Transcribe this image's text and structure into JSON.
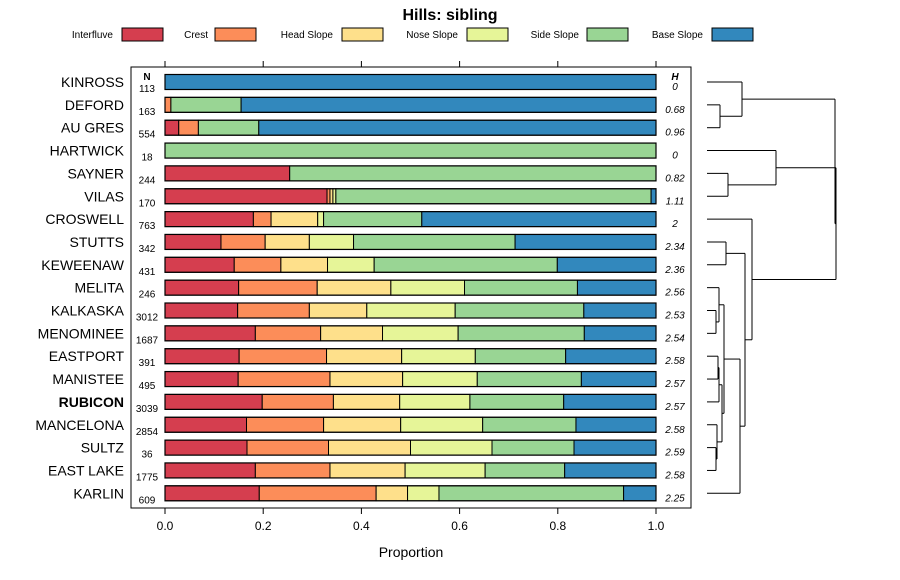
{
  "chart_data": {
    "type": "bar",
    "orientation": "horizontal",
    "stacked": true,
    "title": "Hills: sibling",
    "xlabel": "Proportion",
    "xlim": [
      0,
      1
    ],
    "xticks": [
      0,
      0.2,
      0.4,
      0.6,
      0.8,
      1
    ],
    "xtick_labels": [
      "0.0",
      "0.2",
      "0.4",
      "0.6",
      "0.8",
      "1.0"
    ],
    "n_header": "N",
    "h_header": "H",
    "highlight": "RUBICON",
    "series": [
      {
        "name": "Interfluve",
        "color": "#d53e4f"
      },
      {
        "name": "Crest",
        "color": "#fc8d59"
      },
      {
        "name": "Head Slope",
        "color": "#fee08b"
      },
      {
        "name": "Nose Slope",
        "color": "#e6f598"
      },
      {
        "name": "Side Slope",
        "color": "#99d594"
      },
      {
        "name": "Base Slope",
        "color": "#3288bd"
      }
    ],
    "rows": [
      {
        "name": "KINROSS",
        "n": "113",
        "h": "0",
        "values": [
          0,
          0,
          0,
          0,
          0,
          1
        ]
      },
      {
        "name": "DEFORD",
        "n": "163",
        "h": "0.68",
        "values": [
          0,
          0.012,
          0,
          0,
          0.143,
          0.845
        ]
      },
      {
        "name": "AU GRES",
        "n": "554",
        "h": "0.96",
        "values": [
          0.028,
          0.04,
          0,
          0,
          0.123,
          0.809
        ]
      },
      {
        "name": "HARTWICK",
        "n": "18",
        "h": "0",
        "values": [
          0,
          0,
          0,
          0,
          1,
          0
        ]
      },
      {
        "name": "SAYNER",
        "n": "244",
        "h": "0.82",
        "values": [
          0.254,
          0,
          0,
          0,
          0.746,
          0
        ]
      },
      {
        "name": "VILAS",
        "n": "170",
        "h": "1.11",
        "values": [
          0.33,
          0.006,
          0.006,
          0.006,
          0.642,
          0.01
        ]
      },
      {
        "name": "CROSWELL",
        "n": "763",
        "h": "2",
        "values": [
          0.18,
          0.036,
          0.095,
          0.012,
          0.2,
          0.477
        ]
      },
      {
        "name": "STUTTS",
        "n": "342",
        "h": "2.34",
        "values": [
          0.114,
          0.09,
          0.09,
          0.09,
          0.329,
          0.287
        ]
      },
      {
        "name": "KEWEENAW",
        "n": "431",
        "h": "2.36",
        "values": [
          0.141,
          0.095,
          0.095,
          0.095,
          0.373,
          0.201
        ]
      },
      {
        "name": "MELITA",
        "n": "246",
        "h": "2.56",
        "values": [
          0.15,
          0.16,
          0.15,
          0.15,
          0.23,
          0.16
        ]
      },
      {
        "name": "KALKASKA",
        "n": "3012",
        "h": "2.53",
        "values": [
          0.148,
          0.146,
          0.117,
          0.18,
          0.262,
          0.147
        ]
      },
      {
        "name": "MENOMINEE",
        "n": "1687",
        "h": "2.54",
        "values": [
          0.184,
          0.133,
          0.126,
          0.154,
          0.257,
          0.146
        ]
      },
      {
        "name": "EASTPORT",
        "n": "391",
        "h": "2.58",
        "values": [
          0.151,
          0.178,
          0.153,
          0.15,
          0.184,
          0.184
        ]
      },
      {
        "name": "MANISTEE",
        "n": "495",
        "h": "2.57",
        "values": [
          0.149,
          0.187,
          0.148,
          0.152,
          0.212,
          0.152
        ]
      },
      {
        "name": "RUBICON",
        "n": "3039",
        "h": "2.57",
        "values": [
          0.198,
          0.145,
          0.135,
          0.143,
          0.191,
          0.188
        ]
      },
      {
        "name": "MANCELONA",
        "n": "2854",
        "h": "2.58",
        "values": [
          0.166,
          0.157,
          0.157,
          0.167,
          0.19,
          0.163
        ]
      },
      {
        "name": "SULTZ",
        "n": "36",
        "h": "2.59",
        "values": [
          0.167,
          0.166,
          0.167,
          0.166,
          0.167,
          0.167
        ]
      },
      {
        "name": "EAST LAKE",
        "n": "1775",
        "h": "2.58",
        "values": [
          0.184,
          0.152,
          0.153,
          0.163,
          0.162,
          0.186
        ]
      },
      {
        "name": "KARLIN",
        "n": "609",
        "h": "2.25",
        "values": [
          0.192,
          0.238,
          0.064,
          0.064,
          0.376,
          0.066
        ]
      }
    ]
  }
}
